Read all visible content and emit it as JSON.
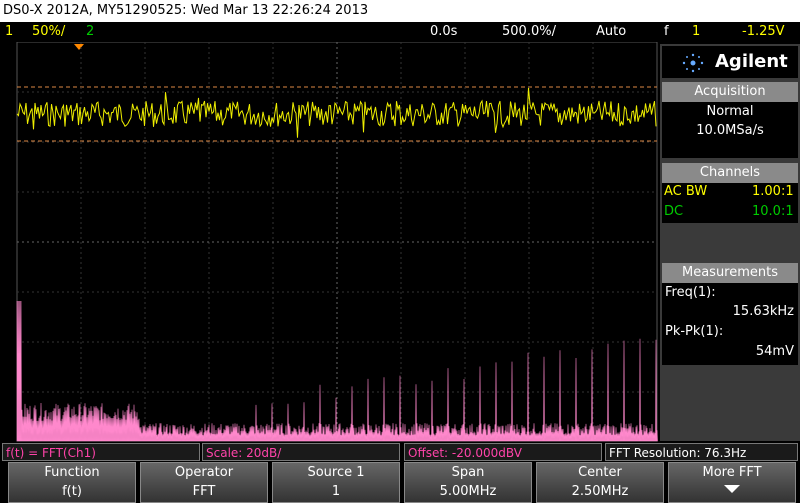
{
  "title_bar": "DS0-X 2012A, MY51290525: Wed Mar 13 22:26:24 2013",
  "status": {
    "ch1": "1",
    "ch1_scale": "50%/",
    "ch2": "2",
    "time_offset": "0.0s",
    "time_scale": "500.0%/",
    "trigger_mode": "Auto",
    "trigger_icon": "f",
    "trigger_source": "1",
    "trigger_level": "-1.25V"
  },
  "side_panel": {
    "brand": "Agilent",
    "acquisition": {
      "heading": "Acquisition",
      "mode": "Normal",
      "rate": "10.0MSa/s"
    },
    "channels": {
      "heading": "Channels",
      "rows": [
        [
          "AC BW",
          "1.00:1"
        ],
        [
          "DC",
          "10.0:1"
        ]
      ]
    },
    "measurements": {
      "heading": "Measurements",
      "items": [
        {
          "label": "Freq(1):",
          "value": "15.63kHz"
        },
        {
          "label": "Pk-Pk(1):",
          "value": "54mV"
        }
      ]
    }
  },
  "math_bar": [
    "f(t) = FFT(Ch1)",
    "Scale: 20dB/",
    "Offset: -20.000dBV",
    "FFT Resolution: 76.3Hz"
  ],
  "softkeys": [
    {
      "label": "Function",
      "value": "f(t)"
    },
    {
      "label": "Operator",
      "value": "FFT"
    },
    {
      "label": "Source 1",
      "value": "1"
    },
    {
      "label": "Span",
      "value": "5.00MHz"
    },
    {
      "label": "Center",
      "value": "2.50MHz"
    },
    {
      "label": "More FFT"
    }
  ]
}
